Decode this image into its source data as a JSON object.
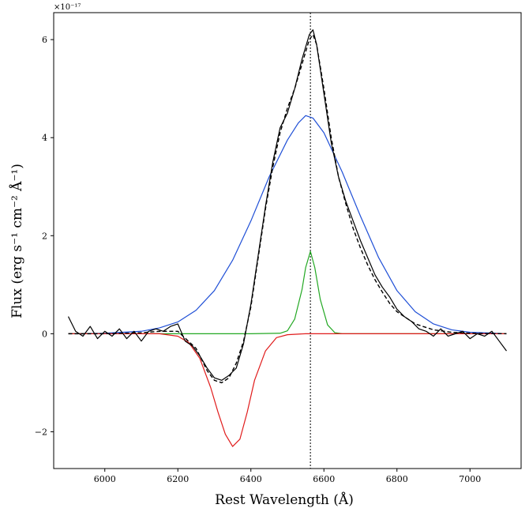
{
  "chart_data": {
    "type": "line",
    "title": "",
    "xlabel": "Rest Wavelength (Å)",
    "ylabel": "Flux (erg s⁻¹ cm⁻² Å⁻¹)",
    "y_offset_label": "×10⁻¹⁷",
    "xlim": [
      5860,
      7140
    ],
    "ylim": [
      -2.75,
      6.55
    ],
    "x_ticks": [
      6000,
      6200,
      6400,
      6600,
      6800,
      7000
    ],
    "y_ticks": [
      -2,
      0,
      2,
      4,
      6
    ],
    "y_tick_labels": [
      "−2",
      "0",
      "2",
      "4",
      "6"
    ],
    "grid": false,
    "vline_x": 6563,
    "series": [
      {
        "style": "data",
        "color": "#000000",
        "x": [
          5900,
          5920,
          5940,
          5960,
          5980,
          6000,
          6020,
          6040,
          6060,
          6080,
          6100,
          6120,
          6140,
          6160,
          6180,
          6200,
          6220,
          6240,
          6260,
          6280,
          6300,
          6320,
          6340,
          6360,
          6380,
          6400,
          6420,
          6440,
          6460,
          6480,
          6500,
          6520,
          6540,
          6560,
          6570,
          6580,
          6600,
          6620,
          6640,
          6660,
          6680,
          6700,
          6720,
          6740,
          6760,
          6780,
          6800,
          6820,
          6840,
          6860,
          6880,
          6900,
          6920,
          6940,
          6960,
          6980,
          7000,
          7020,
          7040,
          7060,
          7080,
          7100
        ],
        "y": [
          0.35,
          0.05,
          -0.05,
          0.15,
          -0.1,
          0.05,
          -0.05,
          0.1,
          -0.1,
          0.05,
          -0.15,
          0.05,
          0.1,
          0.05,
          0.15,
          0.2,
          -0.15,
          -0.25,
          -0.45,
          -0.7,
          -0.9,
          -0.95,
          -0.85,
          -0.7,
          -0.2,
          0.6,
          1.6,
          2.6,
          3.5,
          4.2,
          4.5,
          5.0,
          5.6,
          6.1,
          6.2,
          5.9,
          4.9,
          3.9,
          3.2,
          2.7,
          2.3,
          1.9,
          1.55,
          1.2,
          0.95,
          0.75,
          0.5,
          0.35,
          0.25,
          0.1,
          0.05,
          -0.05,
          0.1,
          -0.05,
          0.0,
          0.05,
          -0.1,
          0.0,
          -0.05,
          0.05,
          -0.15,
          -0.35
        ]
      },
      {
        "style": "fit",
        "color": "#000000",
        "x": [
          5900,
          6000,
          6100,
          6150,
          6200,
          6250,
          6280,
          6300,
          6320,
          6340,
          6360,
          6380,
          6400,
          6420,
          6440,
          6460,
          6480,
          6500,
          6520,
          6540,
          6560,
          6570,
          6580,
          6600,
          6620,
          6640,
          6660,
          6680,
          6700,
          6720,
          6740,
          6760,
          6780,
          6800,
          6850,
          6900,
          6950,
          7000,
          7100
        ],
        "y": [
          0,
          0,
          0.02,
          0.05,
          0.05,
          -0.3,
          -0.75,
          -0.95,
          -1.0,
          -0.9,
          -0.6,
          -0.15,
          0.55,
          1.55,
          2.55,
          3.4,
          4.1,
          4.6,
          5.0,
          5.5,
          6.0,
          6.1,
          5.9,
          5.0,
          4.0,
          3.2,
          2.65,
          2.15,
          1.75,
          1.4,
          1.1,
          0.85,
          0.62,
          0.45,
          0.2,
          0.08,
          0.03,
          0.01,
          0
        ]
      },
      {
        "style": "component",
        "color": "#1f4fd6",
        "x": [
          5900,
          6000,
          6100,
          6150,
          6200,
          6250,
          6300,
          6350,
          6400,
          6450,
          6500,
          6530,
          6550,
          6570,
          6600,
          6650,
          6700,
          6750,
          6800,
          6850,
          6900,
          6950,
          7000,
          7100
        ],
        "y": [
          0.0,
          0.01,
          0.05,
          0.12,
          0.24,
          0.48,
          0.88,
          1.5,
          2.3,
          3.2,
          3.95,
          4.3,
          4.45,
          4.4,
          4.1,
          3.3,
          2.4,
          1.55,
          0.88,
          0.45,
          0.2,
          0.08,
          0.03,
          0.0
        ]
      },
      {
        "style": "component",
        "color": "#23a823",
        "x": [
          5900,
          6400,
          6480,
          6500,
          6520,
          6540,
          6550,
          6563,
          6575,
          6590,
          6610,
          6630,
          6650,
          7100
        ],
        "y": [
          0,
          0,
          0.01,
          0.06,
          0.3,
          0.9,
          1.35,
          1.68,
          1.35,
          0.7,
          0.18,
          0.02,
          0,
          0
        ]
      },
      {
        "style": "component",
        "color": "#e01b1b",
        "x": [
          5900,
          6150,
          6200,
          6230,
          6260,
          6290,
          6310,
          6330,
          6350,
          6370,
          6390,
          6410,
          6440,
          6470,
          6500,
          6550,
          7100
        ],
        "y": [
          0,
          0,
          -0.05,
          -0.18,
          -0.5,
          -1.1,
          -1.6,
          -2.05,
          -2.3,
          -2.15,
          -1.6,
          -0.95,
          -0.35,
          -0.08,
          -0.02,
          0,
          0
        ]
      }
    ]
  }
}
